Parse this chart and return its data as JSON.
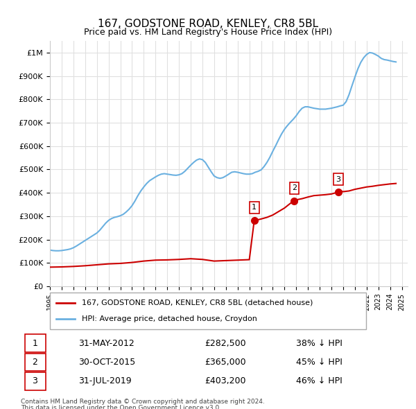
{
  "title": "167, GODSTONE ROAD, KENLEY, CR8 5BL",
  "subtitle": "Price paid vs. HM Land Registry's House Price Index (HPI)",
  "legend_property": "167, GODSTONE ROAD, KENLEY, CR8 5BL (detached house)",
  "legend_hpi": "HPI: Average price, detached house, Croydon",
  "footer1": "Contains HM Land Registry data © Crown copyright and database right 2024.",
  "footer2": "This data is licensed under the Open Government Licence v3.0.",
  "sales": [
    {
      "label": "1",
      "date": "31-MAY-2012",
      "price": 282500,
      "pct": "38%",
      "x_year": 2012.42
    },
    {
      "label": "2",
      "date": "30-OCT-2015",
      "price": 365000,
      "pct": "45%",
      "x_year": 2015.83
    },
    {
      "label": "3",
      "date": "31-JUL-2019",
      "price": 403200,
      "pct": "46%",
      "x_year": 2019.58
    }
  ],
  "hpi_color": "#6ab0e0",
  "property_color": "#cc0000",
  "sale_marker_color": "#cc0000",
  "background_color": "#ffffff",
  "grid_color": "#e0e0e0",
  "ylim": [
    0,
    1050000
  ],
  "xlim_start": 1995.0,
  "xlim_end": 2025.5,
  "hpi_data_x": [
    1995.0,
    1995.25,
    1995.5,
    1995.75,
    1996.0,
    1996.25,
    1996.5,
    1996.75,
    1997.0,
    1997.25,
    1997.5,
    1997.75,
    1998.0,
    1998.25,
    1998.5,
    1998.75,
    1999.0,
    1999.25,
    1999.5,
    1999.75,
    2000.0,
    2000.25,
    2000.5,
    2000.75,
    2001.0,
    2001.25,
    2001.5,
    2001.75,
    2002.0,
    2002.25,
    2002.5,
    2002.75,
    2003.0,
    2003.25,
    2003.5,
    2003.75,
    2004.0,
    2004.25,
    2004.5,
    2004.75,
    2005.0,
    2005.25,
    2005.5,
    2005.75,
    2006.0,
    2006.25,
    2006.5,
    2006.75,
    2007.0,
    2007.25,
    2007.5,
    2007.75,
    2008.0,
    2008.25,
    2008.5,
    2008.75,
    2009.0,
    2009.25,
    2009.5,
    2009.75,
    2010.0,
    2010.25,
    2010.5,
    2010.75,
    2011.0,
    2011.25,
    2011.5,
    2011.75,
    2012.0,
    2012.25,
    2012.5,
    2012.75,
    2013.0,
    2013.25,
    2013.5,
    2013.75,
    2014.0,
    2014.25,
    2014.5,
    2014.75,
    2015.0,
    2015.25,
    2015.5,
    2015.75,
    2016.0,
    2016.25,
    2016.5,
    2016.75,
    2017.0,
    2017.25,
    2017.5,
    2017.75,
    2018.0,
    2018.25,
    2018.5,
    2018.75,
    2019.0,
    2019.25,
    2019.5,
    2019.75,
    2020.0,
    2020.25,
    2020.5,
    2020.75,
    2021.0,
    2021.25,
    2021.5,
    2021.75,
    2022.0,
    2022.25,
    2022.5,
    2022.75,
    2023.0,
    2023.25,
    2023.5,
    2023.75,
    2024.0,
    2024.25,
    2024.5
  ],
  "hpi_data_y": [
    155000,
    153000,
    152000,
    152000,
    153000,
    155000,
    157000,
    160000,
    165000,
    172000,
    180000,
    188000,
    196000,
    204000,
    212000,
    220000,
    228000,
    240000,
    255000,
    270000,
    282000,
    290000,
    295000,
    298000,
    302000,
    308000,
    318000,
    330000,
    345000,
    365000,
    388000,
    408000,
    425000,
    440000,
    452000,
    460000,
    468000,
    475000,
    480000,
    482000,
    480000,
    478000,
    476000,
    475000,
    477000,
    482000,
    492000,
    505000,
    518000,
    530000,
    540000,
    545000,
    542000,
    530000,
    510000,
    490000,
    472000,
    465000,
    462000,
    465000,
    472000,
    480000,
    488000,
    490000,
    488000,
    485000,
    482000,
    480000,
    480000,
    482000,
    488000,
    492000,
    498000,
    512000,
    530000,
    552000,
    578000,
    602000,
    628000,
    652000,
    672000,
    688000,
    702000,
    715000,
    730000,
    748000,
    762000,
    768000,
    768000,
    765000,
    762000,
    760000,
    758000,
    758000,
    758000,
    760000,
    762000,
    765000,
    768000,
    772000,
    775000,
    790000,
    820000,
    858000,
    895000,
    930000,
    958000,
    978000,
    992000,
    1000000,
    998000,
    992000,
    985000,
    975000,
    970000,
    968000,
    965000,
    962000,
    960000
  ],
  "property_data_x": [
    1995.0,
    1996.0,
    1997.0,
    1998.0,
    1999.0,
    2000.0,
    2001.0,
    2002.0,
    2003.0,
    2004.0,
    2005.0,
    2006.0,
    2007.0,
    2008.0,
    2009.0,
    2010.0,
    2011.0,
    2012.0,
    2012.42,
    2012.75,
    2013.0,
    2013.5,
    2014.0,
    2014.5,
    2015.0,
    2015.5,
    2015.83,
    2016.0,
    2016.5,
    2017.0,
    2017.5,
    2018.0,
    2018.5,
    2019.0,
    2019.58,
    2019.75,
    2020.0,
    2020.5,
    2021.0,
    2021.5,
    2022.0,
    2022.5,
    2023.0,
    2023.5,
    2024.0,
    2024.5
  ],
  "property_data_y": [
    82000,
    83000,
    85000,
    88000,
    92000,
    96000,
    98000,
    102000,
    108000,
    112000,
    113000,
    115000,
    118000,
    115000,
    108000,
    110000,
    112000,
    114000,
    282500,
    285000,
    288000,
    295000,
    305000,
    320000,
    335000,
    355000,
    365000,
    370000,
    375000,
    382000,
    388000,
    390000,
    392000,
    395000,
    403200,
    408000,
    405000,
    408000,
    415000,
    420000,
    425000,
    428000,
    432000,
    435000,
    438000,
    440000
  ]
}
